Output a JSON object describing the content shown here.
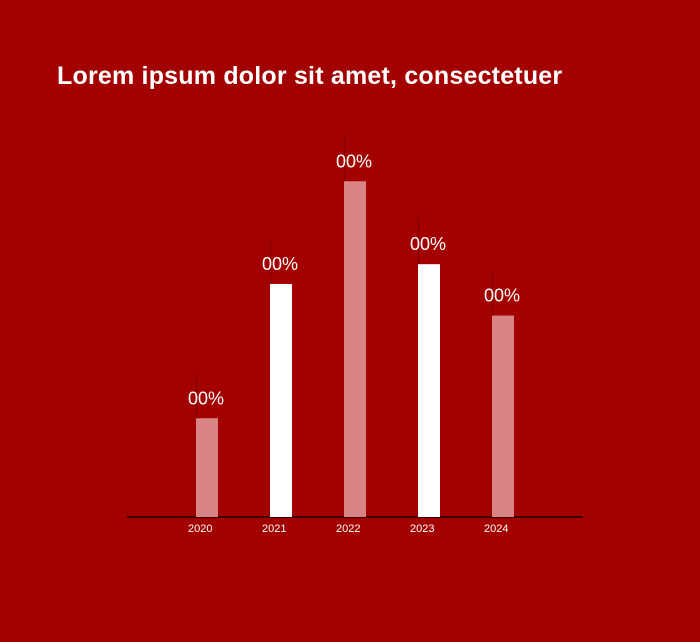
{
  "chart_data": {
    "type": "bar",
    "title": "Lorem ipsum dolor sit amet, consectetuer",
    "categories": [
      "2020",
      "2021",
      "2022",
      "2023",
      "2024"
    ],
    "values": [
      25,
      59,
      85,
      64,
      51
    ],
    "data_labels": [
      "00%",
      "00%",
      "00%",
      "00%",
      "00%"
    ],
    "ylim": [
      0,
      100
    ],
    "grid": false,
    "legend": "none",
    "xlabel": "",
    "ylabel": "",
    "colors": {
      "background": "#a30000",
      "bar_solid": "#ffffff",
      "bar_light": "#d98585",
      "axis": "#1a0000",
      "text": "#ffffff"
    },
    "bar_styles": [
      "light",
      "solid",
      "light",
      "solid",
      "light"
    ]
  }
}
